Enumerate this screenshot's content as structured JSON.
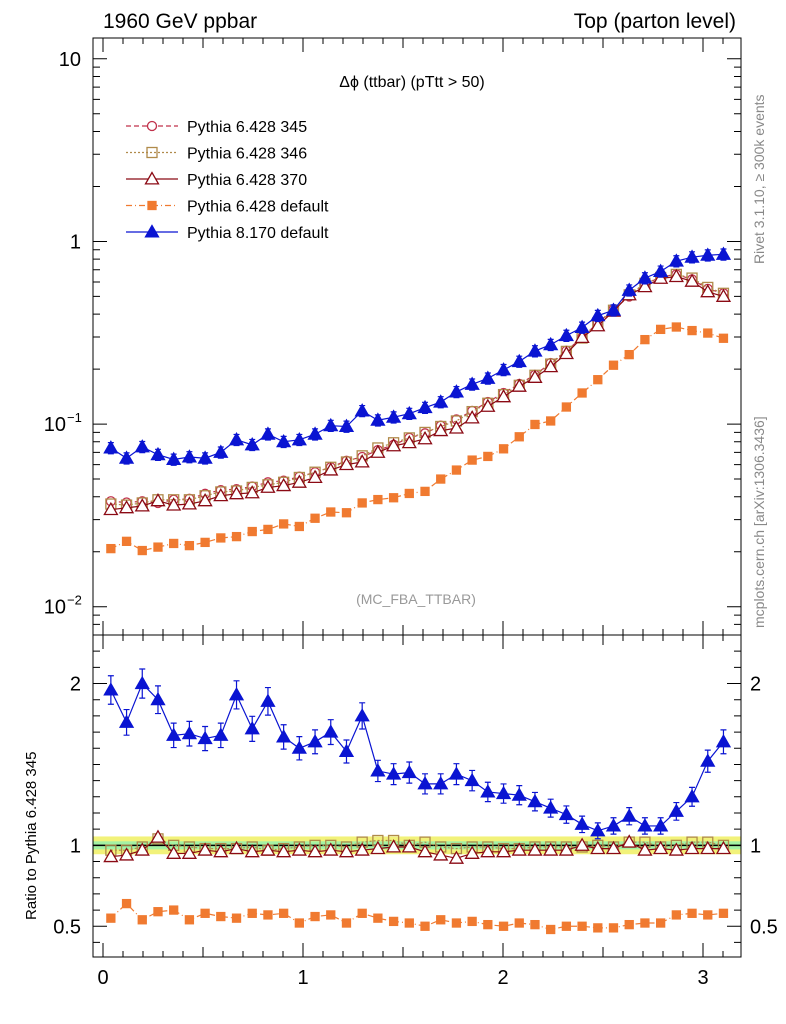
{
  "header": {
    "left": "1960 GeV ppbar",
    "right": "Top (parton level)"
  },
  "side_labels": {
    "rivet": "Rivet 3.1.10, ≥ 300k events",
    "mcplots": "mcplots.cern.ch [arXiv:1306.3436]"
  },
  "colors": {
    "p345": "#c0304a",
    "p346": "#b08a4a",
    "p370": "#8b0a14",
    "p6def": "#f07a30",
    "p8def": "#0a14d2",
    "band_outer": "#f2f27a",
    "band_inner": "#a4f2a4"
  },
  "chart_data": [
    {
      "type": "line",
      "title": "Δϕ (ttbar) (pTtt > 50)",
      "annotation": "(MC_FBA_TTBAR)",
      "yscale": "log",
      "xlim": [
        -0.05,
        3.19
      ],
      "ylim": [
        0.007,
        13
      ],
      "yticks": [
        {
          "v": 10,
          "label": "10"
        },
        {
          "v": 1,
          "label": "1"
        },
        {
          "v": 0.1,
          "label": "10",
          "sup": "−1"
        },
        {
          "v": 0.01,
          "label": "10",
          "sup": "−2"
        }
      ],
      "legend_position": "top-left",
      "x": [
        0.0393,
        0.1178,
        0.1963,
        0.2749,
        0.3534,
        0.432,
        0.5105,
        0.589,
        0.6676,
        0.7461,
        0.8247,
        0.9032,
        0.9817,
        1.0603,
        1.1388,
        1.2174,
        1.2959,
        1.3744,
        1.453,
        1.5315,
        1.6101,
        1.6886,
        1.7671,
        1.8457,
        1.9242,
        2.0028,
        2.0813,
        2.1598,
        2.2384,
        2.3169,
        2.3955,
        2.474,
        2.5525,
        2.6311,
        2.7096,
        2.7882,
        2.8667,
        2.9452,
        3.0238,
        3.1023
      ],
      "series": [
        {
          "name": "Pythia 6.428 345",
          "key": "p345",
          "values": [
            0.0378,
            0.0372,
            0.0378,
            0.037,
            0.0385,
            0.039,
            0.0415,
            0.0435,
            0.044,
            0.0455,
            0.048,
            0.049,
            0.0515,
            0.0545,
            0.058,
            0.063,
            0.066,
            0.072,
            0.077,
            0.084,
            0.089,
            0.098,
            0.106,
            0.118,
            0.132,
            0.148,
            0.166,
            0.186,
            0.216,
            0.252,
            0.298,
            0.358,
            0.425,
            0.5,
            0.58,
            0.64,
            0.66,
            0.62,
            0.55,
            0.52
          ]
        },
        {
          "name": "Pythia 6.428 346",
          "key": "p346",
          "values": [
            0.0365,
            0.036,
            0.037,
            0.0385,
            0.0385,
            0.0385,
            0.0405,
            0.0425,
            0.043,
            0.045,
            0.0465,
            0.048,
            0.051,
            0.0545,
            0.058,
            0.062,
            0.067,
            0.074,
            0.079,
            0.084,
            0.09,
            0.097,
            0.104,
            0.117,
            0.13,
            0.145,
            0.163,
            0.185,
            0.213,
            0.25,
            0.296,
            0.358,
            0.42,
            0.51,
            0.59,
            0.635,
            0.66,
            0.63,
            0.56,
            0.52
          ]
        },
        {
          "name": "Pythia 6.428 370",
          "key": "p370",
          "values": [
            0.034,
            0.0348,
            0.0356,
            0.038,
            0.036,
            0.0365,
            0.038,
            0.0405,
            0.0415,
            0.042,
            0.045,
            0.046,
            0.048,
            0.051,
            0.056,
            0.06,
            0.062,
            0.07,
            0.076,
            0.079,
            0.083,
            0.092,
            0.095,
            0.108,
            0.125,
            0.141,
            0.161,
            0.18,
            0.206,
            0.243,
            0.298,
            0.345,
            0.415,
            0.51,
            0.565,
            0.628,
            0.642,
            0.605,
            0.53,
            0.5
          ]
        },
        {
          "name": "Pythia 6.428 default",
          "key": "p6def",
          "values": [
            0.0208,
            0.0228,
            0.0203,
            0.0212,
            0.0222,
            0.0216,
            0.0225,
            0.0238,
            0.0242,
            0.0258,
            0.0265,
            0.0284,
            0.0275,
            0.0305,
            0.033,
            0.0327,
            0.037,
            0.0386,
            0.0395,
            0.0417,
            0.0428,
            0.05,
            0.056,
            0.0635,
            0.0665,
            0.0732,
            0.0852,
            0.0995,
            0.104,
            0.124,
            0.148,
            0.175,
            0.21,
            0.24,
            0.29,
            0.33,
            0.34,
            0.325,
            0.315,
            0.295
          ]
        },
        {
          "name": "Pythia 8.170 default",
          "key": "p8def",
          "values": [
            0.074,
            0.065,
            0.075,
            0.068,
            0.064,
            0.066,
            0.065,
            0.07,
            0.082,
            0.077,
            0.088,
            0.08,
            0.082,
            0.088,
            0.098,
            0.097,
            0.118,
            0.105,
            0.109,
            0.114,
            0.123,
            0.132,
            0.15,
            0.165,
            0.178,
            0.198,
            0.22,
            0.251,
            0.272,
            0.305,
            0.338,
            0.392,
            0.42,
            0.54,
            0.63,
            0.685,
            0.78,
            0.82,
            0.84,
            0.85
          ]
        }
      ]
    },
    {
      "type": "line",
      "ylabel": "Ratio to Pythia 6.428 345",
      "ylim": [
        0.31,
        2.3
      ],
      "xlim": [
        -0.05,
        3.19
      ],
      "xticks": [
        0,
        1,
        2,
        3
      ],
      "yticks": [
        0.5,
        1,
        2
      ],
      "reference_band": {
        "inner": [
          0.975,
          1.025
        ],
        "outer": [
          0.945,
          1.055
        ]
      },
      "x": [
        0.0393,
        0.1178,
        0.1963,
        0.2749,
        0.3534,
        0.432,
        0.5105,
        0.589,
        0.6676,
        0.7461,
        0.8247,
        0.9032,
        0.9817,
        1.0603,
        1.1388,
        1.2174,
        1.2959,
        1.3744,
        1.453,
        1.5315,
        1.6101,
        1.6886,
        1.7671,
        1.8457,
        1.9242,
        2.0028,
        2.0813,
        2.1598,
        2.2384,
        2.3169,
        2.3955,
        2.474,
        2.5525,
        2.6311,
        2.7096,
        2.7882,
        2.8667,
        2.9452,
        3.0238,
        3.1023
      ],
      "series": [
        {
          "name": "Pythia 6.428 346",
          "key": "p346",
          "values": [
            0.97,
            0.97,
            0.99,
            1.04,
            1.0,
            0.99,
            0.98,
            0.98,
            0.98,
            0.99,
            0.97,
            0.98,
            0.99,
            1.0,
            1.0,
            0.99,
            1.02,
            1.03,
            1.03,
            1.0,
            1.02,
            0.99,
            0.98,
            0.99,
            0.99,
            0.98,
            0.98,
            0.99,
            0.99,
            0.99,
            0.99,
            1.0,
            0.99,
            1.02,
            1.02,
            0.99,
            1.0,
            1.02,
            1.02,
            1.0
          ]
        },
        {
          "name": "Pythia 6.428 370",
          "key": "p370",
          "values": [
            0.93,
            0.94,
            0.97,
            1.05,
            0.95,
            0.95,
            0.97,
            0.96,
            0.98,
            0.96,
            0.97,
            0.96,
            0.97,
            0.96,
            0.97,
            0.96,
            0.97,
            0.98,
            0.99,
            0.99,
            0.96,
            0.94,
            0.92,
            0.95,
            0.96,
            0.96,
            0.97,
            0.97,
            0.97,
            0.97,
            1.0,
            0.98,
            0.98,
            1.02,
            0.97,
            0.98,
            0.97,
            0.98,
            0.98,
            0.98
          ]
        },
        {
          "name": "Pythia 6.428 default",
          "key": "p6def",
          "values": [
            0.55,
            0.64,
            0.54,
            0.59,
            0.6,
            0.54,
            0.58,
            0.56,
            0.55,
            0.58,
            0.57,
            0.58,
            0.52,
            0.56,
            0.57,
            0.52,
            0.58,
            0.55,
            0.53,
            0.52,
            0.5,
            0.54,
            0.52,
            0.53,
            0.51,
            0.5,
            0.52,
            0.51,
            0.48,
            0.5,
            0.5,
            0.49,
            0.49,
            0.51,
            0.52,
            0.52,
            0.57,
            0.58,
            0.57,
            0.58
          ]
        },
        {
          "name": "Pythia 8.170 default",
          "key": "p8def",
          "values": [
            1.96,
            1.76,
            2.0,
            1.9,
            1.68,
            1.69,
            1.66,
            1.68,
            1.93,
            1.72,
            1.89,
            1.67,
            1.6,
            1.64,
            1.7,
            1.58,
            1.8,
            1.46,
            1.44,
            1.45,
            1.38,
            1.38,
            1.44,
            1.4,
            1.33,
            1.32,
            1.31,
            1.27,
            1.23,
            1.19,
            1.13,
            1.09,
            1.12,
            1.18,
            1.12,
            1.12,
            1.21,
            1.3,
            1.52,
            1.64
          ]
        }
      ]
    }
  ]
}
